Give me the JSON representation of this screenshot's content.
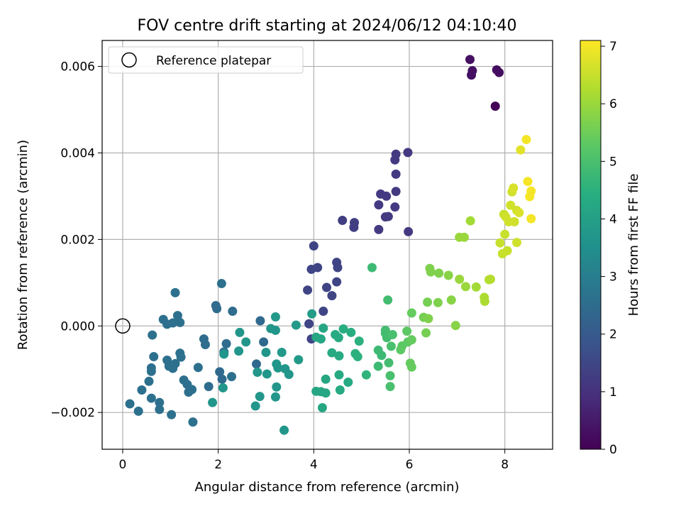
{
  "chart_data": {
    "type": "scatter",
    "title": "FOV centre drift starting at 2024/06/12 04:10:40",
    "xlabel": "Angular distance from reference (arcmin)",
    "ylabel": "Rotation from reference (arcmin)",
    "xlim": [
      -0.43,
      9.0
    ],
    "ylim": [
      -0.00285,
      0.0066
    ],
    "grid": true,
    "legend": {
      "placement": "top-left",
      "entries": [
        "Reference platepar"
      ]
    },
    "x_ticks": [
      {
        "value": 0,
        "label": "0"
      },
      {
        "value": 2,
        "label": "2"
      },
      {
        "value": 4,
        "label": "4"
      },
      {
        "value": 6,
        "label": "6"
      },
      {
        "value": 8,
        "label": "8"
      }
    ],
    "y_ticks": [
      {
        "value": -0.002,
        "label": "−0.002"
      },
      {
        "value": 0.0,
        "label": "0.000"
      },
      {
        "value": 0.002,
        "label": "0.002"
      },
      {
        "value": 0.004,
        "label": "0.004"
      },
      {
        "value": 0.006,
        "label": "0.006"
      }
    ],
    "colorbar": {
      "label": "Hours from first FF file",
      "range": [
        0,
        7.1
      ],
      "colormap": "viridis",
      "ticks": [
        {
          "value": 0,
          "label": "0"
        },
        {
          "value": 1,
          "label": "1"
        },
        {
          "value": 2,
          "label": "2"
        },
        {
          "value": 3,
          "label": "3"
        },
        {
          "value": 4,
          "label": "4"
        },
        {
          "value": 5,
          "label": "5"
        },
        {
          "value": 6,
          "label": "6"
        },
        {
          "value": 7,
          "label": "7"
        }
      ]
    },
    "reference_point": {
      "name": "Reference platepar",
      "x": 0,
      "y": 0
    },
    "points": [
      [
        7.27,
        0.00616,
        0.3
      ],
      [
        7.32,
        0.0059,
        0.3
      ],
      [
        7.3,
        0.0058,
        0.3
      ],
      [
        7.83,
        0.00592,
        0.25
      ],
      [
        7.88,
        0.00586,
        0.25
      ],
      [
        7.8,
        0.00508,
        0.05
      ],
      [
        5.72,
        0.00397,
        1.2
      ],
      [
        5.97,
        0.00401,
        1.2
      ],
      [
        5.7,
        0.00384,
        1.2
      ],
      [
        5.72,
        0.00351,
        1.2
      ],
      [
        5.4,
        0.00305,
        1.2
      ],
      [
        5.72,
        0.00311,
        1.2
      ],
      [
        5.52,
        0.003,
        1.2
      ],
      [
        5.36,
        0.0028,
        1.2
      ],
      [
        5.7,
        0.00275,
        1.2
      ],
      [
        5.5,
        0.00252,
        1.2
      ],
      [
        5.56,
        0.00253,
        1.2
      ],
      [
        4.6,
        0.00244,
        1.3
      ],
      [
        4.85,
        0.00239,
        1.3
      ],
      [
        4.84,
        0.00228,
        1.3
      ],
      [
        5.36,
        0.00223,
        1.2
      ],
      [
        5.98,
        0.00218,
        1.2
      ],
      [
        4.0,
        0.00185,
        1.45
      ],
      [
        3.95,
        0.00131,
        1.45
      ],
      [
        4.08,
        0.00135,
        1.45
      ],
      [
        4.48,
        0.00147,
        1.45
      ],
      [
        4.5,
        0.00135,
        1.45
      ],
      [
        4.48,
        0.00102,
        1.45
      ],
      [
        4.27,
        0.00089,
        1.45
      ],
      [
        4.38,
        0.0007,
        1.45
      ],
      [
        3.87,
        0.00083,
        1.45
      ],
      [
        4.2,
        0.00034,
        1.45
      ],
      [
        3.9,
        5e-05,
        1.45
      ],
      [
        3.95,
        -0.0003,
        1.45
      ],
      [
        1.1,
        0.00077,
        2.6
      ],
      [
        2.07,
        0.00098,
        2.6
      ],
      [
        1.15,
        0.00024,
        2.6
      ],
      [
        1.2,
        8e-05,
        2.6
      ],
      [
        1.05,
        7e-05,
        2.6
      ],
      [
        0.93,
        4e-05,
        2.6
      ],
      [
        0.85,
        0.00015,
        2.6
      ],
      [
        1.95,
        0.00047,
        2.5
      ],
      [
        1.97,
        0.0004,
        2.5
      ],
      [
        2.3,
        0.00034,
        2.5
      ],
      [
        0.62,
        -0.00021,
        2.6
      ],
      [
        0.65,
        -0.00071,
        2.6
      ],
      [
        0.6,
        -0.00097,
        2.6
      ],
      [
        0.6,
        -0.00105,
        2.6
      ],
      [
        0.93,
        -0.00079,
        2.6
      ],
      [
        0.97,
        -0.00093,
        2.6
      ],
      [
        1.05,
        -0.00098,
        2.6
      ],
      [
        1.1,
        -0.00087,
        2.6
      ],
      [
        1.2,
        -0.00063,
        2.6
      ],
      [
        1.22,
        -0.00072,
        2.6
      ],
      [
        1.28,
        -0.00125,
        2.6
      ],
      [
        1.35,
        -0.00135,
        2.6
      ],
      [
        1.38,
        -0.00153,
        2.6
      ],
      [
        1.45,
        -0.00147,
        2.6
      ],
      [
        1.58,
        -0.00096,
        2.6
      ],
      [
        1.7,
        -0.0003,
        2.5
      ],
      [
        1.73,
        -0.00043,
        2.5
      ],
      [
        2.17,
        -0.00041,
        2.5
      ],
      [
        2.12,
        -0.0006,
        2.6
      ],
      [
        2.03,
        -0.00106,
        2.4
      ],
      [
        2.08,
        -0.00123,
        2.4
      ],
      [
        2.28,
        -0.00117,
        2.6
      ],
      [
        1.8,
        -0.0014,
        2.5
      ],
      [
        0.55,
        -0.00128,
        2.6
      ],
      [
        0.4,
        -0.00148,
        2.6
      ],
      [
        0.6,
        -0.00167,
        2.6
      ],
      [
        0.77,
        -0.00177,
        2.6
      ],
      [
        0.77,
        -0.00193,
        2.6
      ],
      [
        0.15,
        -0.0018,
        2.6
      ],
      [
        0.33,
        -0.00197,
        2.6
      ],
      [
        1.02,
        -0.00205,
        2.6
      ],
      [
        1.47,
        -0.00222,
        2.6
      ],
      [
        2.8,
        -0.00088,
        2.4
      ],
      [
        2.88,
        0.00012,
        2.4
      ],
      [
        2.95,
        -0.00037,
        2.4
      ],
      [
        2.12,
        -0.00065,
        3.7
      ],
      [
        2.1,
        -0.00143,
        3.7
      ],
      [
        1.88,
        -0.00177,
        3.7
      ],
      [
        2.45,
        -0.00015,
        3.7
      ],
      [
        2.43,
        -0.00058,
        3.7
      ],
      [
        2.58,
        -0.00037,
        3.7
      ],
      [
        2.82,
        -0.00107,
        3.7
      ],
      [
        2.87,
        -0.00163,
        3.7
      ],
      [
        2.78,
        -0.00185,
        3.7
      ],
      [
        3.0,
        -0.00061,
        3.7
      ],
      [
        3.02,
        -0.00111,
        3.7
      ],
      [
        3.1,
        -6e-05,
        3.7
      ],
      [
        3.2,
        -0.0001,
        3.7
      ],
      [
        3.22,
        -0.00088,
        3.7
      ],
      [
        3.25,
        -0.00097,
        3.7
      ],
      [
        3.22,
        -0.00141,
        3.7
      ],
      [
        3.2,
        -0.00164,
        3.7
      ],
      [
        3.2,
        0.00021,
        3.8
      ],
      [
        3.33,
        -0.00061,
        3.8
      ],
      [
        3.4,
        -0.00099,
        3.7
      ],
      [
        3.48,
        -0.00112,
        3.7
      ],
      [
        3.68,
        -0.00078,
        3.8
      ],
      [
        3.63,
        2e-05,
        3.8
      ],
      [
        3.38,
        -0.00241,
        3.7
      ],
      [
        3.96,
        0.00028,
        3.9
      ],
      [
        4.05,
        -0.00026,
        4.2
      ],
      [
        4.15,
        -0.0003,
        4.2
      ],
      [
        4.2,
        -5e-05,
        4.2
      ],
      [
        4.18,
        -0.00189,
        4.2
      ],
      [
        4.05,
        -0.00151,
        4.2
      ],
      [
        4.15,
        -0.00152,
        4.2
      ],
      [
        4.25,
        -0.00155,
        4.2
      ],
      [
        4.25,
        -0.00123,
        4.2
      ],
      [
        4.38,
        -0.00062,
        4.3
      ],
      [
        4.45,
        -0.0002,
        4.3
      ],
      [
        4.52,
        -0.00027,
        4.3
      ],
      [
        4.53,
        -0.00069,
        4.3
      ],
      [
        4.53,
        -0.00113,
        4.3
      ],
      [
        4.55,
        -0.00148,
        4.3
      ],
      [
        4.62,
        -7e-05,
        4.4
      ],
      [
        4.72,
        -0.0013,
        4.3
      ],
      [
        4.78,
        -0.00015,
        4.4
      ],
      [
        4.87,
        -0.00064,
        4.5
      ],
      [
        4.92,
        -0.00071,
        4.5
      ],
      [
        4.95,
        -0.00035,
        4.5
      ],
      [
        5.1,
        -0.00113,
        4.6
      ],
      [
        5.22,
        0.00135,
        4.8
      ],
      [
        5.35,
        -0.00056,
        4.8
      ],
      [
        5.35,
        -0.00093,
        4.8
      ],
      [
        5.42,
        -0.00068,
        4.8
      ],
      [
        5.5,
        -0.0001,
        4.9
      ],
      [
        5.5,
        -0.00017,
        4.9
      ],
      [
        5.53,
        -0.00027,
        4.9
      ],
      [
        5.55,
        0.0006,
        4.9
      ],
      [
        5.57,
        -0.00085,
        4.9
      ],
      [
        5.6,
        -0.00115,
        5.0
      ],
      [
        5.6,
        -0.0014,
        5.0
      ],
      [
        5.62,
        -0.00047,
        5.0
      ],
      [
        5.65,
        -0.0002,
        5.0
      ],
      [
        5.82,
        -0.00055,
        5.3
      ],
      [
        5.85,
        -0.00046,
        5.3
      ],
      [
        5.95,
        -0.00012,
        5.3
      ],
      [
        5.97,
        -0.00037,
        5.3
      ],
      [
        6.02,
        -0.00086,
        5.4
      ],
      [
        6.05,
        -0.00095,
        5.4
      ],
      [
        6.05,
        -0.00032,
        5.4
      ],
      [
        6.05,
        0.0003,
        5.4
      ],
      [
        6.3,
        0.0002,
        5.6
      ],
      [
        6.35,
        -0.00016,
        5.6
      ],
      [
        6.38,
        0.00055,
        5.6
      ],
      [
        6.4,
        0.00017,
        5.7
      ],
      [
        6.43,
        0.00133,
        5.7
      ],
      [
        6.45,
        0.00125,
        5.7
      ],
      [
        6.6,
        0.00054,
        5.7
      ],
      [
        6.62,
        0.00122,
        5.7
      ],
      [
        6.82,
        0.00117,
        5.8
      ],
      [
        6.88,
        0.0006,
        5.8
      ],
      [
        6.97,
        1e-05,
        5.8
      ],
      [
        7.05,
        0.00205,
        6.0
      ],
      [
        7.05,
        0.00108,
        6.0
      ],
      [
        7.15,
        0.00205,
        6.0
      ],
      [
        7.18,
        0.00091,
        6.0
      ],
      [
        7.28,
        0.00243,
        6.1
      ],
      [
        7.4,
        0.0009,
        6.1
      ],
      [
        7.57,
        0.00066,
        6.2
      ],
      [
        7.58,
        0.00057,
        6.2
      ],
      [
        7.67,
        0.00107,
        6.3
      ],
      [
        7.7,
        0.00108,
        6.3
      ],
      [
        7.9,
        0.00192,
        6.5
      ],
      [
        7.95,
        0.00167,
        6.5
      ],
      [
        7.98,
        0.00258,
        6.5
      ],
      [
        8.0,
        0.00212,
        6.5
      ],
      [
        8.02,
        0.00252,
        6.6
      ],
      [
        8.05,
        0.00174,
        6.5
      ],
      [
        8.08,
        0.00241,
        6.6
      ],
      [
        8.12,
        0.00279,
        6.6
      ],
      [
        8.15,
        0.0031,
        6.6
      ],
      [
        8.18,
        0.00319,
        6.7
      ],
      [
        8.2,
        0.00241,
        6.6
      ],
      [
        8.25,
        0.00267,
        6.6
      ],
      [
        8.25,
        0.00193,
        6.6
      ],
      [
        8.3,
        0.00262,
        6.7
      ],
      [
        8.33,
        0.00407,
        6.8
      ],
      [
        8.45,
        0.00431,
        7.0
      ],
      [
        8.48,
        0.00334,
        7.0
      ],
      [
        8.52,
        0.00299,
        7.0
      ],
      [
        8.55,
        0.00312,
        7.0
      ],
      [
        8.55,
        0.00248,
        7.0
      ]
    ]
  }
}
